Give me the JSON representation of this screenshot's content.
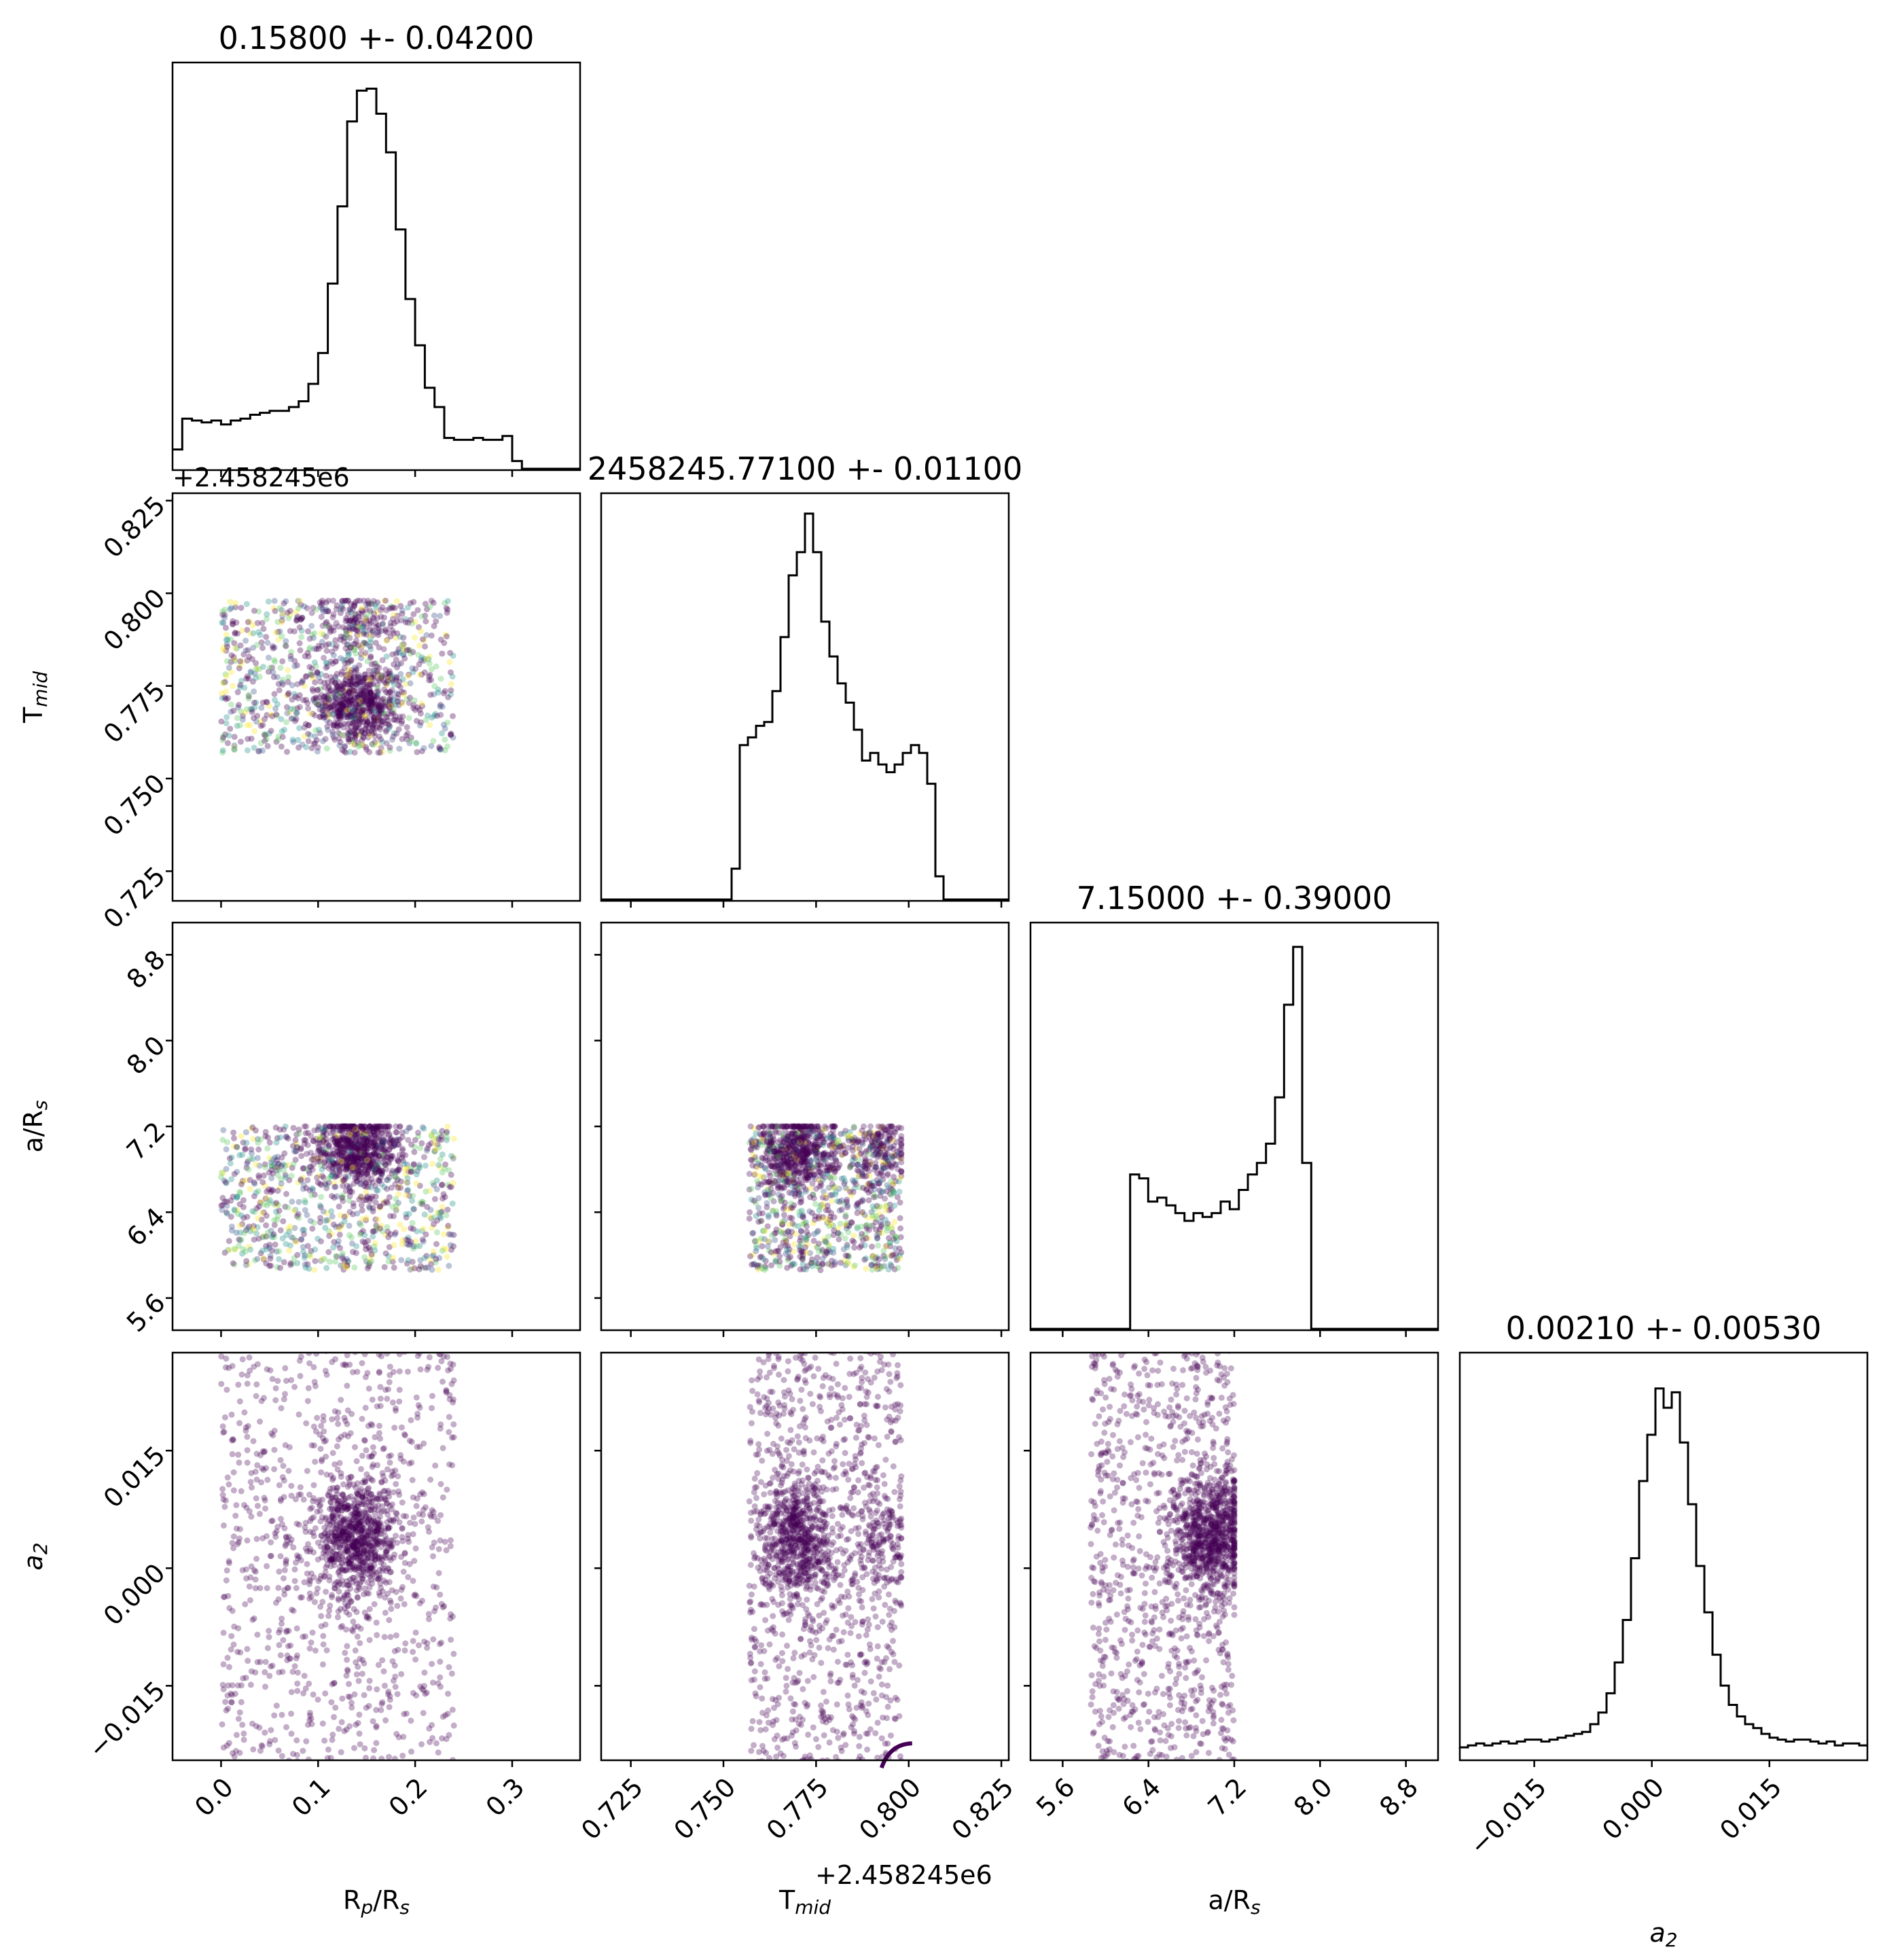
{
  "chart_data": {
    "type": "corner",
    "parameters": [
      {
        "key": "rp",
        "label": "R",
        "label_sub": "p",
        "label_tail": "/R",
        "label_sub2": "s",
        "range": [
          -0.05,
          0.37
        ],
        "ticks": [
          0.0,
          0.1,
          0.2,
          0.3
        ],
        "tick_labels": [
          "0.0",
          "0.1",
          "0.2",
          "0.3"
        ],
        "title": "0.15800 +- 0.04200",
        "uniform": [
          0.0,
          0.24
        ],
        "core": {
          "center": 0.14,
          "sigma": 0.022
        },
        "hist": [
          0.05,
          0.13,
          0.125,
          0.12,
          0.125,
          0.115,
          0.125,
          0.13,
          0.14,
          0.145,
          0.15,
          0.15,
          0.16,
          0.175,
          0.22,
          0.3,
          0.48,
          0.68,
          0.9,
          0.98,
          0.985,
          0.92,
          0.82,
          0.62,
          0.44,
          0.32,
          0.21,
          0.16,
          0.08,
          0.075,
          0.075,
          0.08,
          0.075,
          0.075,
          0.085,
          0.02,
          0.0,
          0.0,
          0.0,
          0.0,
          0.0,
          0.0
        ]
      },
      {
        "key": "tmid",
        "label": "T",
        "label_sub": "mid",
        "label_tail": "",
        "label_sub2": "",
        "range": [
          0.717,
          0.827
        ],
        "ticks": [
          0.725,
          0.75,
          0.775,
          0.8,
          0.825
        ],
        "tick_labels": [
          "0.725",
          "0.750",
          "0.775",
          "0.800",
          "0.825"
        ],
        "offset_label": "+2.458245e6",
        "title": "2458245.77100 +- 0.01100",
        "uniform": [
          0.757,
          0.798
        ],
        "core": {
          "center": 0.77,
          "sigma": 0.005
        },
        "core2": {
          "center": 0.792,
          "sigma": 0.004,
          "weight": 0.2
        },
        "hist": [
          0.0,
          0.0,
          0.0,
          0.0,
          0.0,
          0.0,
          0.0,
          0.0,
          0.0,
          0.0,
          0.0,
          0.0,
          0.0,
          0.0,
          0.0,
          0.0,
          0.08,
          0.4,
          0.42,
          0.45,
          0.46,
          0.54,
          0.68,
          0.84,
          0.9,
          1.0,
          0.9,
          0.72,
          0.63,
          0.56,
          0.51,
          0.44,
          0.36,
          0.38,
          0.35,
          0.33,
          0.35,
          0.38,
          0.4,
          0.38,
          0.3,
          0.06,
          0.0,
          0.0,
          0.0,
          0.0,
          0.0,
          0.0,
          0.0,
          0.0
        ]
      },
      {
        "key": "ars",
        "label": "a/R",
        "label_sub": "s",
        "label_tail": "",
        "label_sub2": "",
        "range": [
          5.3,
          9.1
        ],
        "ticks": [
          5.6,
          6.4,
          7.2,
          8.0,
          8.8
        ],
        "tick_labels": [
          "5.6",
          "6.4",
          "7.2",
          "8.0",
          "8.8"
        ],
        "title": "7.15000 +- 0.39000",
        "uniform": [
          5.86,
          7.2
        ],
        "core": {
          "center": 6.98,
          "sigma": 0.18
        },
        "hist": [
          0.0,
          0.0,
          0.0,
          0.0,
          0.0,
          0.0,
          0.0,
          0.0,
          0.0,
          0.0,
          0.0,
          0.4,
          0.39,
          0.33,
          0.34,
          0.32,
          0.3,
          0.28,
          0.3,
          0.29,
          0.3,
          0.33,
          0.31,
          0.36,
          0.4,
          0.43,
          0.48,
          0.6,
          0.84,
          0.99,
          0.43,
          0.0,
          0.0,
          0.0,
          0.0,
          0.0,
          0.0,
          0.0,
          0.0,
          0.0,
          0.0,
          0.0,
          0.0,
          0.0,
          0.0
        ]
      },
      {
        "key": "a2",
        "label": "a",
        "label_sub": "2",
        "label_tail": "",
        "label_sub2": "",
        "italic": true,
        "range": [
          -0.0245,
          0.0275
        ],
        "ticks": [
          -0.015,
          0.0,
          0.015
        ],
        "tick_labels": [
          "−0.015",
          "0.000",
          "0.015"
        ],
        "title": "0.00210 +- 0.00530",
        "uniform": [
          -0.026,
          0.03
        ],
        "core": {
          "center": 0.004,
          "sigma": 0.004
        },
        "hist": [
          0.03,
          0.035,
          0.04,
          0.035,
          0.04,
          0.045,
          0.04,
          0.045,
          0.05,
          0.05,
          0.045,
          0.05,
          0.055,
          0.06,
          0.065,
          0.07,
          0.09,
          0.12,
          0.17,
          0.25,
          0.36,
          0.52,
          0.72,
          0.84,
          0.96,
          0.91,
          0.95,
          0.82,
          0.66,
          0.5,
          0.38,
          0.27,
          0.19,
          0.14,
          0.11,
          0.09,
          0.08,
          0.065,
          0.055,
          0.05,
          0.045,
          0.05,
          0.05,
          0.045,
          0.04,
          0.045,
          0.035,
          0.04,
          0.04,
          0.035
        ]
      }
    ],
    "tmid_offset_label_topleft": "+2.458245e6",
    "scatter_color": "#440154",
    "hist_color": "#000000"
  }
}
